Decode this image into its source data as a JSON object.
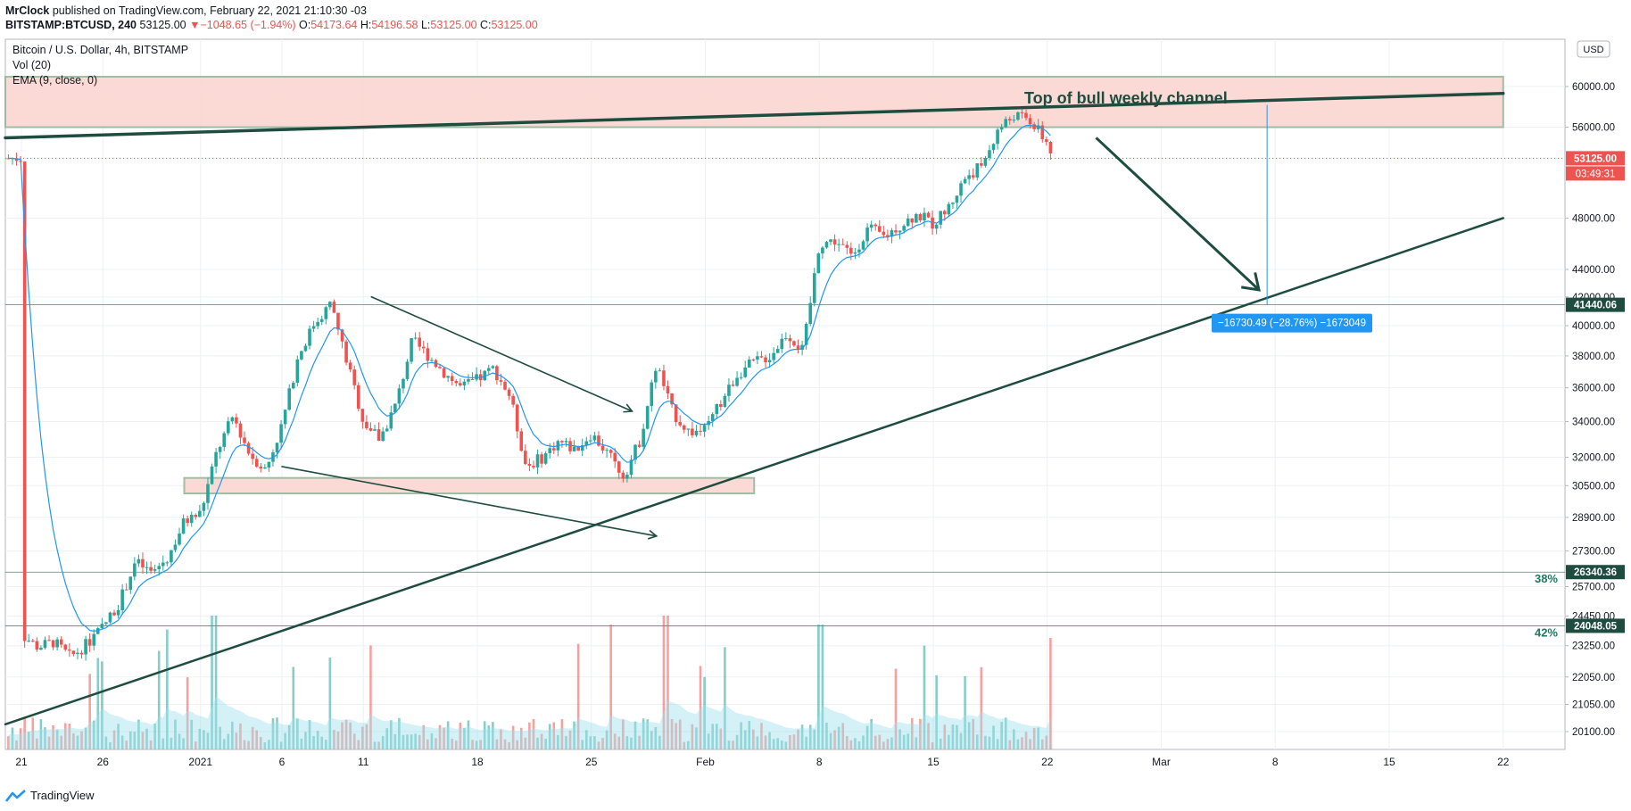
{
  "header": {
    "author": "MrClock",
    "published": "published on TradingView.com, February 22, 2021 21:10:30 -03",
    "symbol": "BITSTAMP:BTCUSD, 240",
    "last": "53125.00",
    "change_arrow": "▼",
    "change": "−1048.65 (−1.94%)",
    "o_label": "O:",
    "o": "54173.64",
    "h_label": "H:",
    "h": "54196.58",
    "l_label": "L:",
    "l": "53125.00",
    "c_label": "C:",
    "c": "53125.00"
  },
  "legend": {
    "title": "Bitcoin / U.S. Dollar, 4h, BITSTAMP",
    "vol": "Vol (20)",
    "ema": "EMA (9, close, 0)"
  },
  "currency_button": "USD",
  "footer": {
    "brand": "TradingView",
    "logo_icon": "tradingview-logo-icon"
  },
  "colors": {
    "up": "#26a69a",
    "down": "#ef5350",
    "trend": "#1e4d40",
    "zone_fill": "#fbd6d2",
    "zone_border": "#9ab59a",
    "ema": "#2196f3",
    "measure": "#2196f3"
  },
  "chart_data": {
    "type": "candlestick",
    "scale": "log",
    "ylim": [
      20100,
      61000
    ],
    "y_ticks": [
      "60000.00",
      "56000.00",
      "48000.00",
      "44000.00",
      "42000.00",
      "40000.00",
      "38000.00",
      "36000.00",
      "34000.00",
      "32000.00",
      "30500.00",
      "28900.00",
      "27300.00",
      "25700.00",
      "24450.00",
      "23250.00",
      "22050.00",
      "21050.00",
      "20100.00"
    ],
    "x_ticks": [
      {
        "label": "21",
        "day": 0
      },
      {
        "label": "26",
        "day": 5
      },
      {
        "label": "2021",
        "day": 11
      },
      {
        "label": "6",
        "day": 16
      },
      {
        "label": "11",
        "day": 21
      },
      {
        "label": "18",
        "day": 28
      },
      {
        "label": "25",
        "day": 35
      },
      {
        "label": "Feb",
        "day": 42
      },
      {
        "label": "8",
        "day": 49
      },
      {
        "label": "15",
        "day": 56
      },
      {
        "label": "22",
        "day": 63
      },
      {
        "label": "Mar",
        "day": 70
      },
      {
        "label": "8",
        "day": 77
      },
      {
        "label": "15",
        "day": 84
      },
      {
        "label": "22",
        "day": 91
      }
    ],
    "price_path": [
      [
        0,
        23700
      ],
      [
        1,
        23200
      ],
      [
        2,
        23400
      ],
      [
        3,
        22800
      ],
      [
        4,
        23300
      ],
      [
        5,
        24000
      ],
      [
        6,
        25000
      ],
      [
        7,
        26800
      ],
      [
        8,
        26300
      ],
      [
        9,
        27000
      ],
      [
        10,
        28700
      ],
      [
        11,
        29100
      ],
      [
        12,
        32300
      ],
      [
        13,
        34300
      ],
      [
        14,
        32200
      ],
      [
        15,
        31300
      ],
      [
        16,
        33800
      ],
      [
        17,
        38000
      ],
      [
        18,
        40200
      ],
      [
        19,
        41500
      ],
      [
        20,
        37600
      ],
      [
        21,
        34000
      ],
      [
        22,
        33000
      ],
      [
        23,
        35000
      ],
      [
        24,
        39000
      ],
      [
        25,
        38000
      ],
      [
        26,
        36900
      ],
      [
        27,
        36000
      ],
      [
        28,
        36500
      ],
      [
        29,
        37200
      ],
      [
        30,
        35500
      ],
      [
        31,
        31500
      ],
      [
        32,
        32000
      ],
      [
        33,
        32900
      ],
      [
        34,
        32400
      ],
      [
        35,
        33300
      ],
      [
        36,
        32200
      ],
      [
        37,
        31000
      ],
      [
        38,
        33000
      ],
      [
        39,
        37500
      ],
      [
        40,
        34500
      ],
      [
        41,
        33400
      ],
      [
        42,
        33500
      ],
      [
        43,
        35200
      ],
      [
        44,
        36900
      ],
      [
        45,
        37600
      ],
      [
        46,
        38000
      ],
      [
        47,
        39500
      ],
      [
        48,
        38300
      ],
      [
        49,
        46000
      ],
      [
        50,
        46200
      ],
      [
        51,
        45000
      ],
      [
        52,
        47200
      ],
      [
        53,
        46500
      ],
      [
        54,
        47500
      ],
      [
        55,
        48300
      ],
      [
        56,
        47500
      ],
      [
        57,
        49000
      ],
      [
        58,
        51500
      ],
      [
        59,
        52500
      ],
      [
        60,
        55800
      ],
      [
        61,
        57200
      ],
      [
        62,
        56500
      ],
      [
        63,
        54500
      ],
      [
        63.4,
        53125
      ]
    ],
    "last_price": "53125.00",
    "countdown": "03:49:31",
    "horizontal_levels": [
      {
        "price": 41440.06,
        "label": "41440.06",
        "color": "#1e4d40"
      },
      {
        "price": 26340.36,
        "label": "26340.36",
        "color": "#1e4d40",
        "fib": "38%"
      },
      {
        "price": 24048.05,
        "label": "24048.05",
        "color": "#1e4d40",
        "fib": "42%"
      }
    ],
    "zones": [
      {
        "x0": -3,
        "x1": 91,
        "y0": 56000,
        "y1": 61000
      },
      {
        "x0": 10,
        "x1": 45,
        "y0": 30100,
        "y1": 30900
      }
    ],
    "trendlines": [
      {
        "x0": -3,
        "y0": 55000,
        "x1": 91,
        "y1": 59300,
        "width": 3.5
      },
      {
        "x0": -3,
        "y0": 20350,
        "x1": 91,
        "y1": 48000,
        "width": 2.5
      },
      {
        "x0": 21.5,
        "y0": 42000,
        "x1": 37.5,
        "y1": 34600,
        "width": 1.6
      },
      {
        "x0": 16,
        "y0": 31500,
        "x1": 39,
        "y1": 28000,
        "width": 1.6
      }
    ],
    "arrows": [
      {
        "x0": 66,
        "y0": 55000,
        "x1": 76,
        "y1": 42500
      }
    ],
    "annotation": "Top of bull weekly channel",
    "measure": {
      "day": 76.5,
      "from": 58150,
      "to": 41440,
      "label": "−16730.49 (−28.76%) −1673049"
    }
  }
}
